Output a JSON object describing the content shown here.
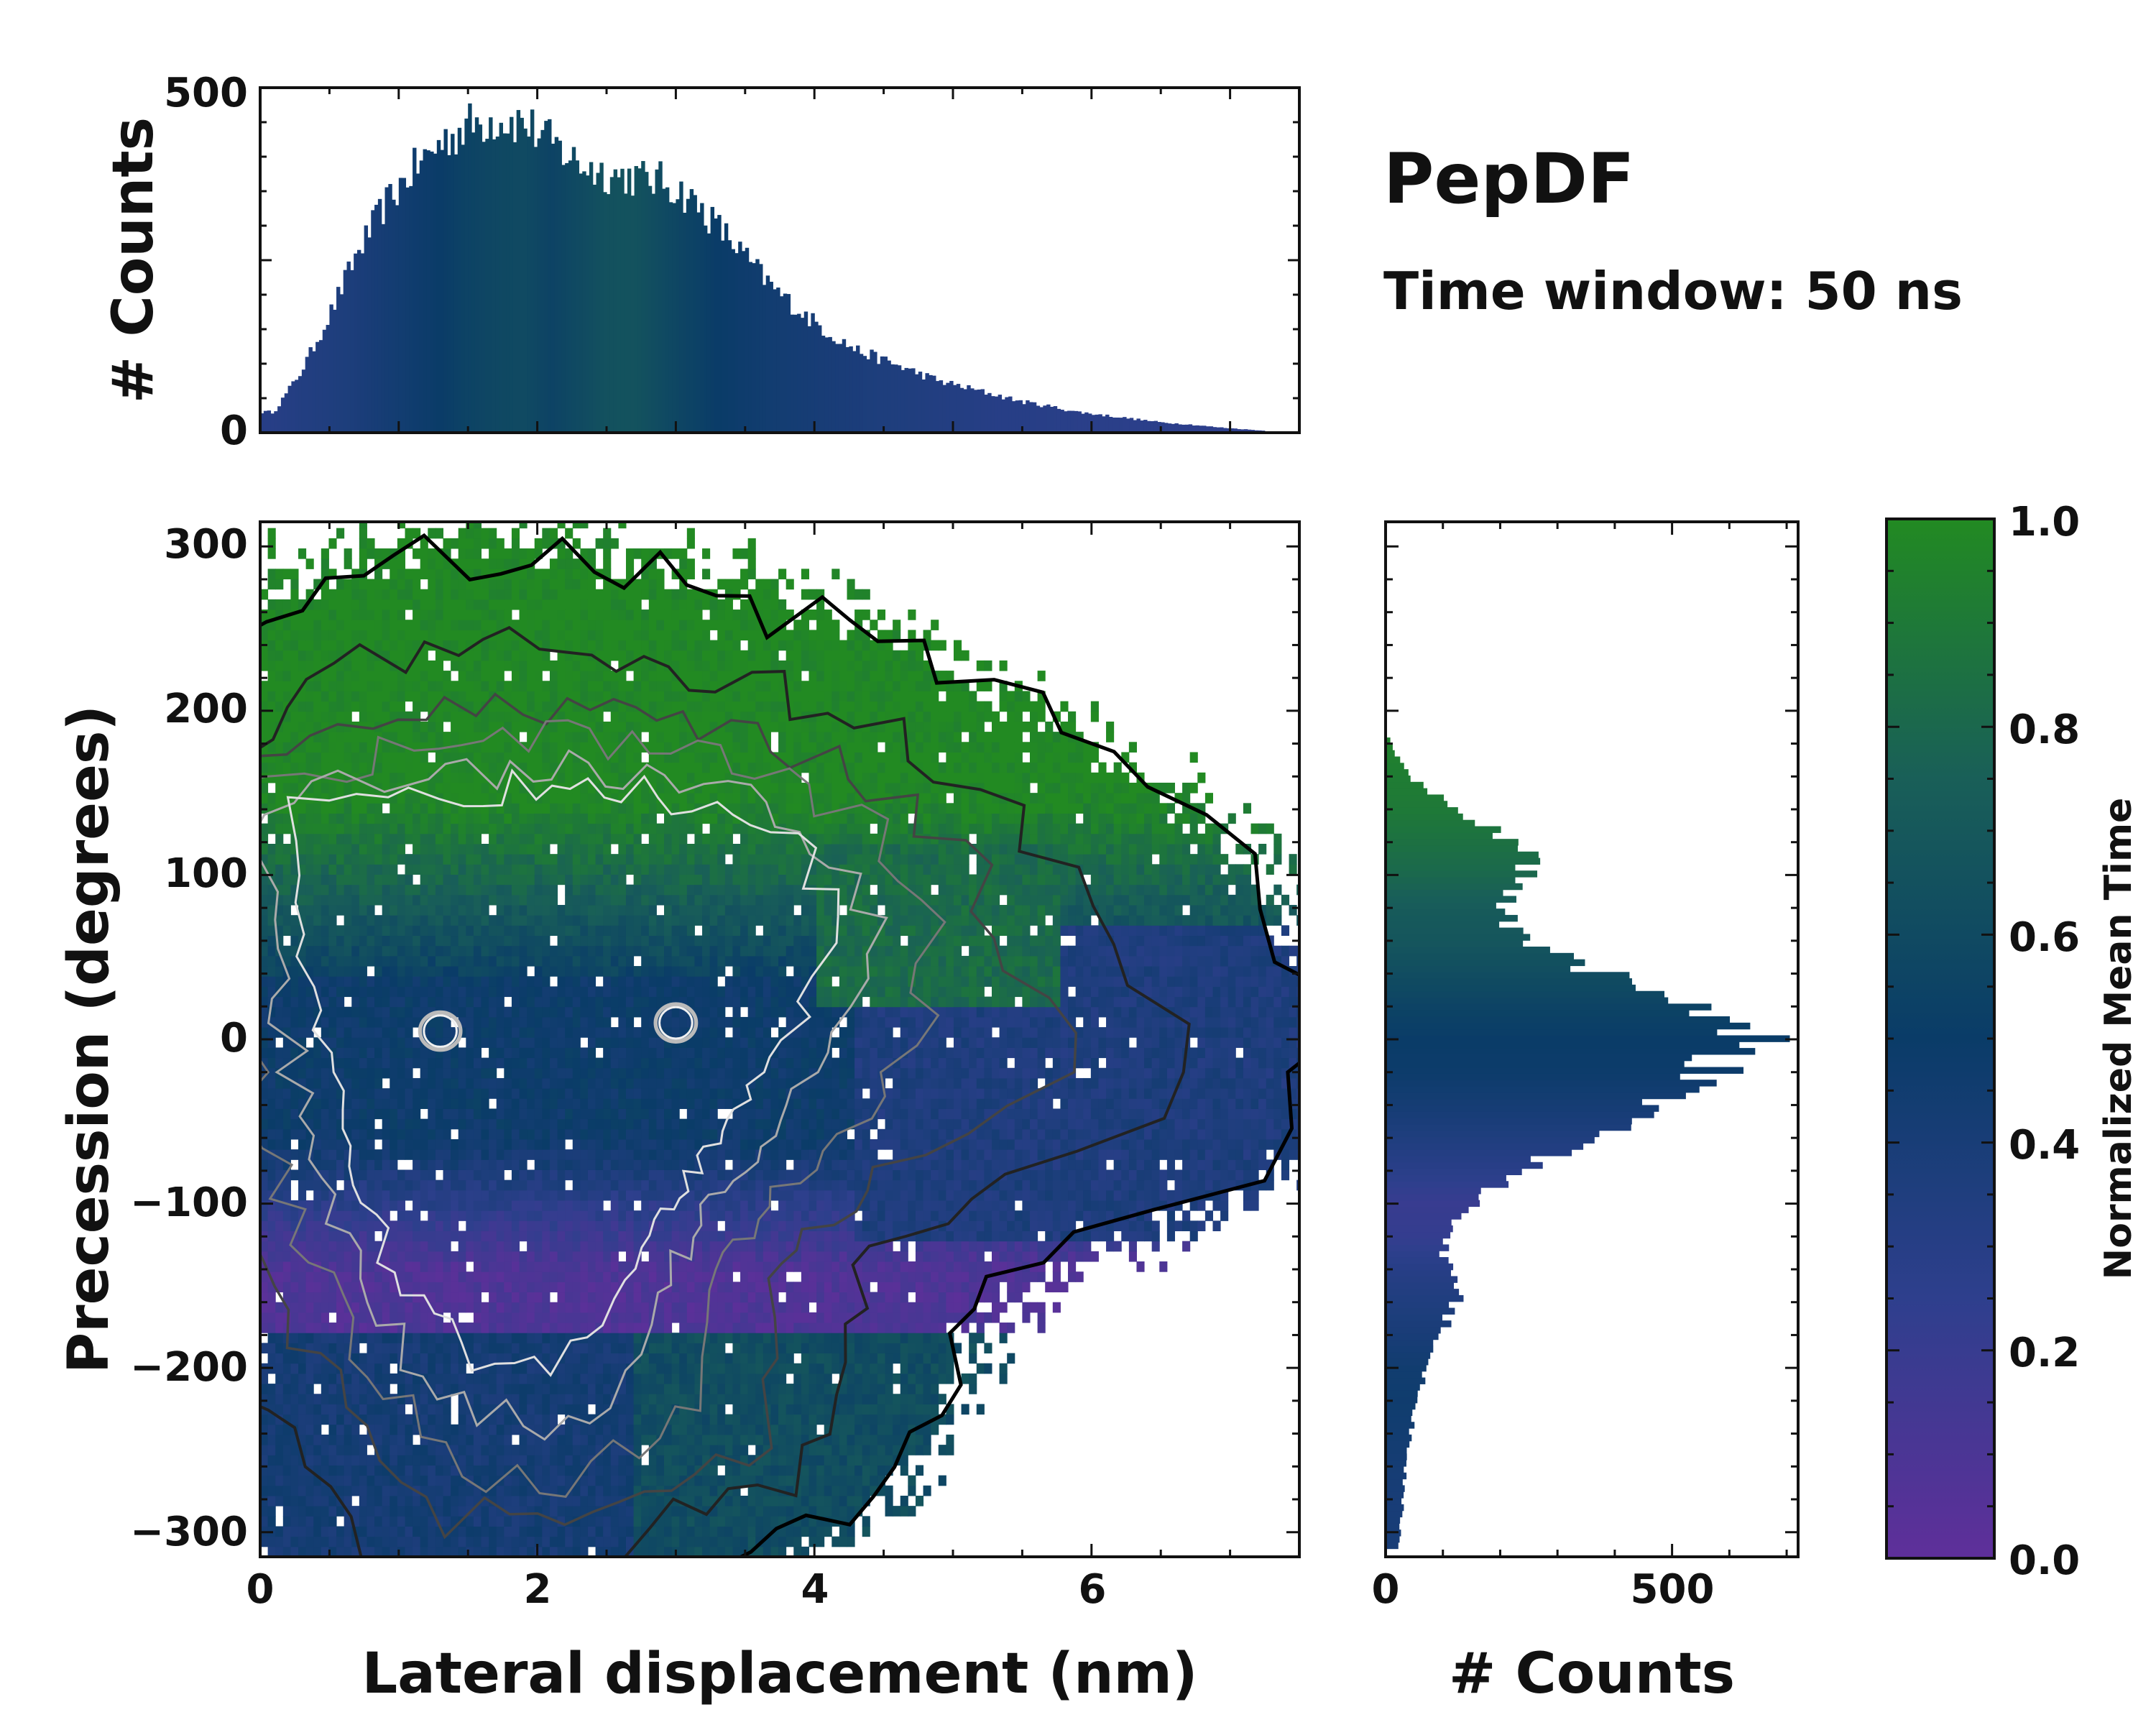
{
  "chart_data": [
    {
      "id": "top-histogram",
      "type": "bar",
      "title": "",
      "xlabel": "",
      "ylabel": "# Counts",
      "xlim": [
        0,
        7.5
      ],
      "ylim": [
        0,
        500
      ],
      "yticks": [
        "0",
        "500"
      ],
      "bin_centers_nm": [
        0.1,
        0.3,
        0.5,
        0.7,
        0.9,
        1.1,
        1.3,
        1.5,
        1.7,
        1.9,
        2.1,
        2.3,
        2.5,
        2.7,
        2.9,
        3.1,
        3.3,
        3.5,
        3.7,
        3.9,
        4.1,
        4.3,
        4.5,
        4.7,
        4.9,
        5.1,
        5.3,
        5.5,
        5.7,
        5.9,
        6.1,
        6.3,
        6.5,
        6.7,
        6.9,
        7.1,
        7.3
      ],
      "counts": [
        30,
        90,
        170,
        260,
        330,
        380,
        420,
        445,
        455,
        450,
        420,
        390,
        375,
        370,
        365,
        340,
        300,
        255,
        210,
        175,
        145,
        120,
        105,
        90,
        75,
        65,
        55,
        45,
        38,
        30,
        25,
        20,
        15,
        12,
        8,
        5,
        2
      ],
      "mean_time": [
        0.3,
        0.33,
        0.35,
        0.38,
        0.42,
        0.46,
        0.5,
        0.55,
        0.58,
        0.6,
        0.55,
        0.6,
        0.65,
        0.66,
        0.6,
        0.55,
        0.5,
        0.47,
        0.44,
        0.42,
        0.4,
        0.38,
        0.36,
        0.35,
        0.33,
        0.32,
        0.3,
        0.3,
        0.29,
        0.28,
        0.28,
        0.27,
        0.27,
        0.26,
        0.26,
        0.25,
        0.25
      ]
    },
    {
      "id": "main-heatmap",
      "type": "heatmap",
      "title": "",
      "xlabel": "Lateral displacement (nm)",
      "ylabel": "Precession (degrees)",
      "xlim": [
        0,
        7.5
      ],
      "ylim": [
        -315,
        315
      ],
      "xticks": [
        "0",
        "2",
        "4",
        "6"
      ],
      "yticks": [
        "300",
        "200",
        "100",
        "0",
        "−100",
        "−200",
        "−300"
      ],
      "color_quantity": "Normalized Mean Time",
      "regions": [
        {
          "name": "upper-green-lobe",
          "x_center_nm": 2.8,
          "precession_center_deg": 110,
          "mean_time": 0.9
        },
        {
          "name": "central-blue-core",
          "x_center_nm": 2.3,
          "precession_center_deg": 0,
          "mean_time": 0.5
        },
        {
          "name": "lower-purple-lobe",
          "x_center_nm": 1.8,
          "precession_center_deg": -150,
          "mean_time": 0.1
        },
        {
          "name": "bottom-blue-tail",
          "x_center_nm": 1.8,
          "precession_center_deg": -260,
          "mean_time": 0.42
        },
        {
          "name": "teal-lower-arm",
          "x_center_nm": 3.2,
          "precession_center_deg": -220,
          "mean_time": 0.62
        },
        {
          "name": "right-blue-tail",
          "x_center_nm": 5.8,
          "precession_center_deg": -20,
          "mean_time": 0.38
        }
      ],
      "density_peaks": [
        {
          "x_nm": 1.3,
          "precession_deg": 5
        },
        {
          "x_nm": 3.0,
          "precession_deg": 10
        }
      ]
    },
    {
      "id": "right-histogram",
      "type": "bar",
      "orientation": "horizontal",
      "xlabel": "# Counts",
      "ylabel": "",
      "xlim": [
        0,
        720
      ],
      "xticks": [
        "0",
        "500"
      ],
      "bin_centers_deg": [
        -300,
        -280,
        -260,
        -240,
        -220,
        -200,
        -180,
        -160,
        -140,
        -120,
        -100,
        -80,
        -60,
        -40,
        -20,
        0,
        20,
        40,
        60,
        80,
        100,
        120,
        140,
        160,
        180
      ],
      "counts": [
        25,
        30,
        35,
        45,
        55,
        70,
        95,
        125,
        110,
        100,
        150,
        240,
        360,
        470,
        560,
        640,
        520,
        380,
        250,
        190,
        260,
        230,
        120,
        40,
        8
      ],
      "mean_time": [
        0.4,
        0.4,
        0.42,
        0.44,
        0.46,
        0.45,
        0.4,
        0.35,
        0.3,
        0.22,
        0.2,
        0.28,
        0.35,
        0.42,
        0.48,
        0.5,
        0.55,
        0.62,
        0.68,
        0.72,
        0.8,
        0.85,
        0.9,
        0.92,
        0.95
      ]
    },
    {
      "id": "colorbar",
      "type": "colorbar",
      "label": "Normalized Mean Time",
      "range": [
        0.0,
        1.0
      ],
      "ticks": [
        "0.0",
        "0.2",
        "0.4",
        "0.6",
        "0.8",
        "1.0"
      ],
      "colors": [
        "#5f2f9a",
        "#2e3f8d",
        "#0a3c68",
        "#195f58",
        "#228a22"
      ]
    }
  ],
  "annotation": {
    "title": "PepDF",
    "subtitle": "Time window: 50 ns"
  }
}
